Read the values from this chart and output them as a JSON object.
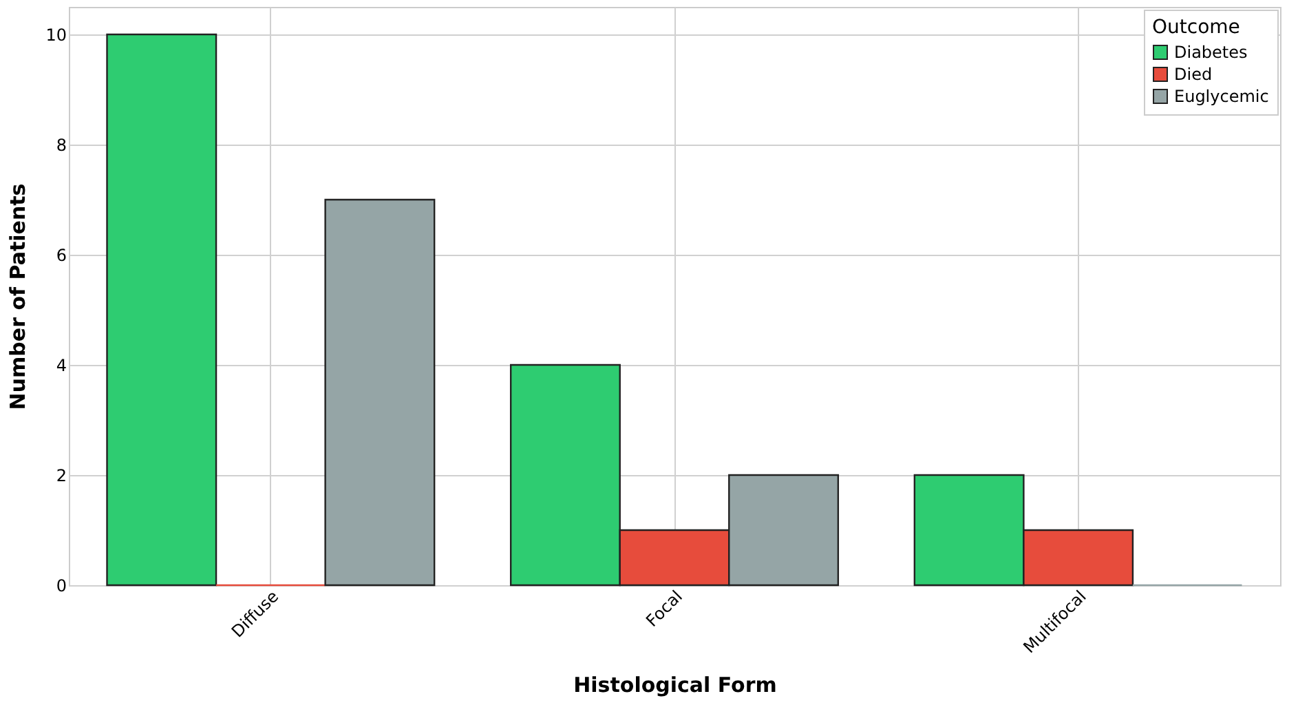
{
  "chart_data": {
    "type": "bar",
    "xlabel": "Histological Form",
    "ylabel": "Number of Patients",
    "legend_title": "Outcome",
    "categories": [
      "Diffuse",
      "Focal",
      "Multifocal"
    ],
    "series": [
      {
        "name": "Diabetes",
        "color": "#2ecc71",
        "values": [
          10,
          4,
          2
        ]
      },
      {
        "name": "Died",
        "color": "#e74c3c",
        "values": [
          0,
          1,
          1
        ]
      },
      {
        "name": "Euglycemic",
        "color": "#95a5a6",
        "values": [
          7,
          2,
          0
        ]
      }
    ],
    "ylim": [
      0,
      10.5
    ],
    "yticks": [
      0,
      2,
      4,
      6,
      8,
      10
    ],
    "grid": true,
    "legend": "top right"
  }
}
